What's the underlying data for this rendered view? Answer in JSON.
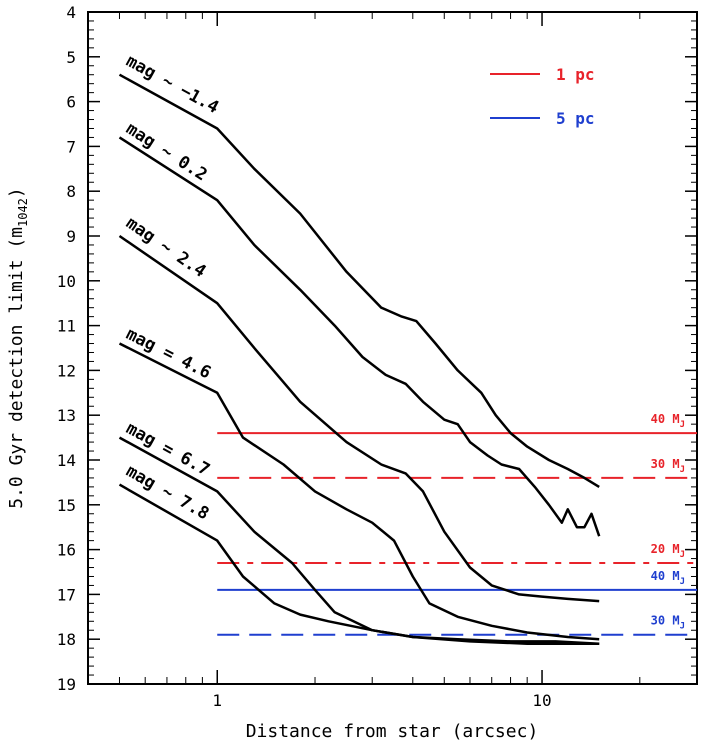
{
  "chart_data": {
    "type": "line",
    "xlabel": "Distance from star (arcsec)",
    "ylabel_main": "5.0 Gyr detection limit (m",
    "ylabel_sub": "1042",
    "ylabel_close": ")",
    "x_scale": "log",
    "xlim": [
      0.4,
      30
    ],
    "ylim": [
      19,
      4
    ],
    "x_ticks": [
      1,
      10
    ],
    "x_tick_labels": [
      "1",
      "10"
    ],
    "y_ticks": [
      4,
      5,
      6,
      7,
      8,
      9,
      10,
      11,
      12,
      13,
      14,
      15,
      16,
      17,
      18,
      19
    ],
    "y_tick_labels": [
      "4",
      "5",
      "6",
      "7",
      "8",
      "9",
      "10",
      "11",
      "12",
      "13",
      "14",
      "15",
      "16",
      "17",
      "18",
      "19"
    ],
    "series": [
      {
        "name": "mag ~ −1.4",
        "label": "mag ~ −1.4",
        "label_x": 0.52,
        "label_y": 5.3,
        "x": [
          0.5,
          1.0,
          1.3,
          1.8,
          2.5,
          3.2,
          3.7,
          4.1,
          4.7,
          5.5,
          6.5,
          7.2,
          8.0,
          9.0,
          10.5,
          12.0,
          13.5,
          15.0
        ],
        "y": [
          5.4,
          6.6,
          7.5,
          8.5,
          9.8,
          10.6,
          10.8,
          10.9,
          11.4,
          12.0,
          12.5,
          13.0,
          13.4,
          13.7,
          14.0,
          14.2,
          14.4,
          14.6
        ]
      },
      {
        "name": "mag ~ 0.2",
        "label": "mag ~ 0.2",
        "label_x": 0.52,
        "label_y": 6.8,
        "x": [
          0.5,
          1.0,
          1.3,
          1.8,
          2.3,
          2.8,
          3.3,
          3.8,
          4.3,
          5.0,
          5.5,
          6.0,
          6.8,
          7.5,
          8.5,
          9.5,
          10.5,
          11.5,
          12.0,
          12.8,
          13.5,
          14.2,
          15.0
        ],
        "y": [
          6.8,
          8.2,
          9.2,
          10.2,
          11.0,
          11.7,
          12.1,
          12.3,
          12.7,
          13.1,
          13.2,
          13.6,
          13.9,
          14.1,
          14.2,
          14.6,
          15.0,
          15.4,
          15.1,
          15.5,
          15.5,
          15.2,
          15.7
        ]
      },
      {
        "name": "mag ~ 2.4",
        "label": "mag ~ 2.4",
        "label_x": 0.52,
        "label_y": 8.9,
        "x": [
          0.5,
          1.0,
          1.3,
          1.8,
          2.5,
          3.2,
          3.8,
          4.3,
          5.0,
          6.0,
          7.0,
          8.5,
          10.0,
          12.0,
          15.0
        ],
        "y": [
          9.0,
          10.5,
          11.5,
          12.7,
          13.6,
          14.1,
          14.3,
          14.7,
          15.6,
          16.4,
          16.8,
          17.0,
          17.05,
          17.1,
          17.15
        ]
      },
      {
        "name": "mag = 4.6",
        "label": "mag = 4.6",
        "label_x": 0.52,
        "label_y": 11.4,
        "x": [
          0.5,
          1.0,
          1.2,
          1.6,
          2.0,
          2.5,
          3.0,
          3.5,
          4.0,
          4.5,
          5.5,
          7.0,
          9.0,
          12.0,
          15.0
        ],
        "y": [
          11.4,
          12.5,
          13.5,
          14.1,
          14.7,
          15.1,
          15.4,
          15.8,
          16.6,
          17.2,
          17.5,
          17.7,
          17.85,
          17.95,
          18.0
        ]
      },
      {
        "name": "mag = 6.7",
        "label": "mag = 6.7",
        "label_x": 0.52,
        "label_y": 13.5,
        "x": [
          0.5,
          1.0,
          1.3,
          1.7,
          2.0,
          2.3,
          3.0,
          4.0,
          5.5,
          8.0,
          11.0,
          15.0
        ],
        "y": [
          13.5,
          14.7,
          15.6,
          16.3,
          16.9,
          17.4,
          17.8,
          17.95,
          18.0,
          18.05,
          18.05,
          18.1
        ]
      },
      {
        "name": "mag ~ 7.8",
        "label": "mag ~ 7.8",
        "label_x": 0.52,
        "label_y": 14.45,
        "x": [
          0.5,
          1.0,
          1.2,
          1.5,
          1.8,
          2.2,
          3.0,
          4.0,
          6.0,
          9.0,
          15.0
        ],
        "y": [
          14.55,
          15.8,
          16.6,
          17.2,
          17.45,
          17.6,
          17.8,
          17.95,
          18.05,
          18.1,
          18.1
        ]
      }
    ],
    "limit_lines": [
      {
        "label": "40 M",
        "sub": "J",
        "y": 13.4,
        "color": "#e8232a",
        "style": "solid"
      },
      {
        "label": "30 M",
        "sub": "J",
        "y": 14.4,
        "color": "#e8232a",
        "style": "dash"
      },
      {
        "label": "20 M",
        "sub": "J",
        "y": 16.3,
        "color": "#e8232a",
        "style": "dashdot"
      },
      {
        "label": "40 M",
        "sub": "J",
        "y": 16.9,
        "color": "#1f3fcf",
        "style": "solid"
      },
      {
        "label": "30 M",
        "sub": "J",
        "y": 17.9,
        "color": "#1f3fcf",
        "style": "dash"
      }
    ],
    "limit_x_start": 1.0,
    "legend": [
      {
        "label": "1 pc",
        "color": "#e8232a"
      },
      {
        "label": "5 pc",
        "color": "#1f3fcf"
      }
    ],
    "legend_position": "top-right"
  }
}
